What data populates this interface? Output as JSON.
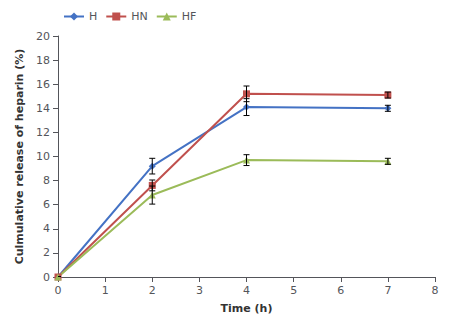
{
  "chart_data": {
    "type": "line",
    "xlabel": "Time (h)",
    "ylabel": "Culmulative release of heparin (%)",
    "xlim": [
      0,
      8
    ],
    "ylim": [
      0,
      20
    ],
    "xticks": [
      0,
      1,
      2,
      3,
      4,
      5,
      6,
      7,
      8
    ],
    "yticks": [
      0,
      2,
      4,
      6,
      8,
      10,
      12,
      14,
      16,
      18,
      20
    ],
    "grid": false,
    "legend": "upper left",
    "series": [
      {
        "name": "H",
        "color": "#4472C4",
        "marker": "diamond",
        "x": [
          0,
          2,
          4,
          7
        ],
        "values": [
          0,
          9.2,
          14.1,
          14.0
        ],
        "yerr": [
          0,
          0.65,
          0.7,
          0.25
        ]
      },
      {
        "name": "HN",
        "color": "#C0504D",
        "marker": "square",
        "x": [
          0,
          2,
          4,
          7
        ],
        "values": [
          0,
          7.6,
          15.2,
          15.1
        ],
        "yerr": [
          0,
          0.45,
          0.65,
          0.25
        ]
      },
      {
        "name": "HF",
        "color": "#9BBB59",
        "marker": "triangle",
        "x": [
          0,
          2,
          4,
          7
        ],
        "values": [
          0,
          6.8,
          9.7,
          9.6
        ],
        "yerr": [
          0,
          0.75,
          0.45,
          0.25
        ]
      }
    ]
  }
}
